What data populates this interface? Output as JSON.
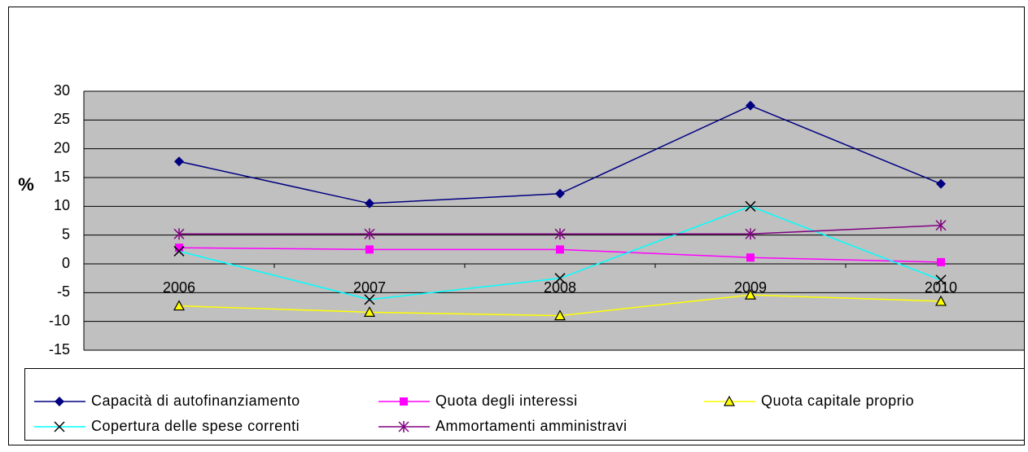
{
  "chart_data": {
    "type": "line",
    "ylabel": "%",
    "categories": [
      "2006",
      "2007",
      "2008",
      "2009",
      "2010"
    ],
    "series": [
      {
        "name": "Capacità di autofinanziamento",
        "color": "#000080",
        "marker": "diamond",
        "values": [
          17.8,
          10.5,
          12.2,
          27.5,
          13.9
        ]
      },
      {
        "name": "Quota degli interessi",
        "color": "#ff00ff",
        "marker": "square",
        "values": [
          2.8,
          2.5,
          2.5,
          1.1,
          0.3
        ]
      },
      {
        "name": "Quota capitale proprio",
        "color": "#ffff00",
        "marker": "triangle",
        "values": [
          -7.3,
          -8.4,
          -9.0,
          -5.4,
          -6.5
        ]
      },
      {
        "name": "Copertura delle spese correnti",
        "color": "#00ffff",
        "marker": "x",
        "values": [
          2.2,
          -6.2,
          -2.5,
          10.0,
          -2.8
        ]
      },
      {
        "name": "Ammortamenti amministravi",
        "color": "#800080",
        "marker": "asterisk",
        "values": [
          5.2,
          5.2,
          5.2,
          5.2,
          6.7
        ]
      }
    ],
    "ylim": [
      -15,
      30
    ],
    "yticks": [
      -15,
      -10,
      -5,
      0,
      5,
      10,
      15,
      20,
      25,
      30
    ],
    "grid": true,
    "plot_background": "#c0c0c0",
    "legend": "bottom"
  }
}
